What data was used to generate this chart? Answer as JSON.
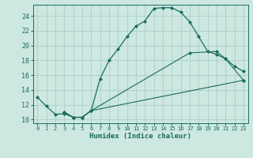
{
  "xlabel": "Humidex (Indice chaleur)",
  "bg_color": "#cce8e0",
  "grid_color": "#aacfc8",
  "line_color": "#1a6b60",
  "xlim": [
    -0.5,
    23.5
  ],
  "ylim": [
    9.5,
    25.5
  ],
  "xticks": [
    0,
    1,
    2,
    3,
    4,
    5,
    6,
    7,
    8,
    9,
    10,
    11,
    12,
    13,
    14,
    15,
    16,
    17,
    18,
    19,
    20,
    21,
    22,
    23
  ],
  "yticks": [
    10,
    12,
    14,
    16,
    18,
    20,
    22,
    24
  ],
  "curve1_x": [
    0,
    1,
    2,
    3,
    4,
    5,
    6,
    7,
    8,
    9,
    10,
    11,
    12,
    13,
    14,
    15,
    16,
    17,
    18,
    19,
    20,
    21,
    22,
    23
  ],
  "curve1_y": [
    13.0,
    11.8,
    10.7,
    10.8,
    10.3,
    10.3,
    11.2,
    15.5,
    18.0,
    19.5,
    21.2,
    22.6,
    23.3,
    25.0,
    25.1,
    25.1,
    24.5,
    23.2,
    21.2,
    19.2,
    18.8,
    18.2,
    17.2,
    16.5
  ],
  "curve2_x": [
    3,
    4,
    5,
    6,
    17,
    20,
    21,
    23
  ],
  "curve2_y": [
    11.0,
    10.3,
    10.3,
    11.2,
    19.0,
    19.2,
    18.2,
    15.3
  ],
  "curve3_x": [
    3,
    4,
    5,
    6,
    23
  ],
  "curve3_y": [
    11.0,
    10.3,
    10.3,
    11.2,
    15.3
  ]
}
